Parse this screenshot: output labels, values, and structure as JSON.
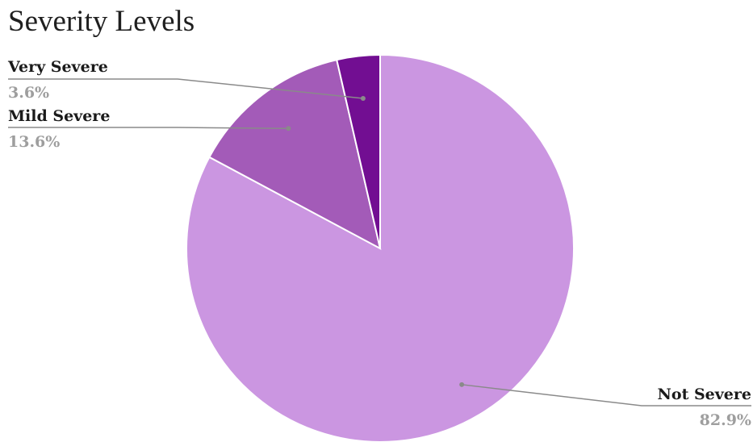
{
  "chart_data": {
    "type": "pie",
    "title": "Severity Levels",
    "slices": [
      {
        "label": "Not Severe",
        "value": 82.9,
        "display": "82.9%",
        "color": "#cb96e1"
      },
      {
        "label": "Mild Severe",
        "value": 13.6,
        "display": "13.6%",
        "color": "#a35bb8"
      },
      {
        "label": "Very Severe",
        "value": 3.6,
        "display": "3.6%",
        "color": "#720e92"
      }
    ],
    "start_angle_deg": 0,
    "direction": "clockwise",
    "legend": "none"
  }
}
